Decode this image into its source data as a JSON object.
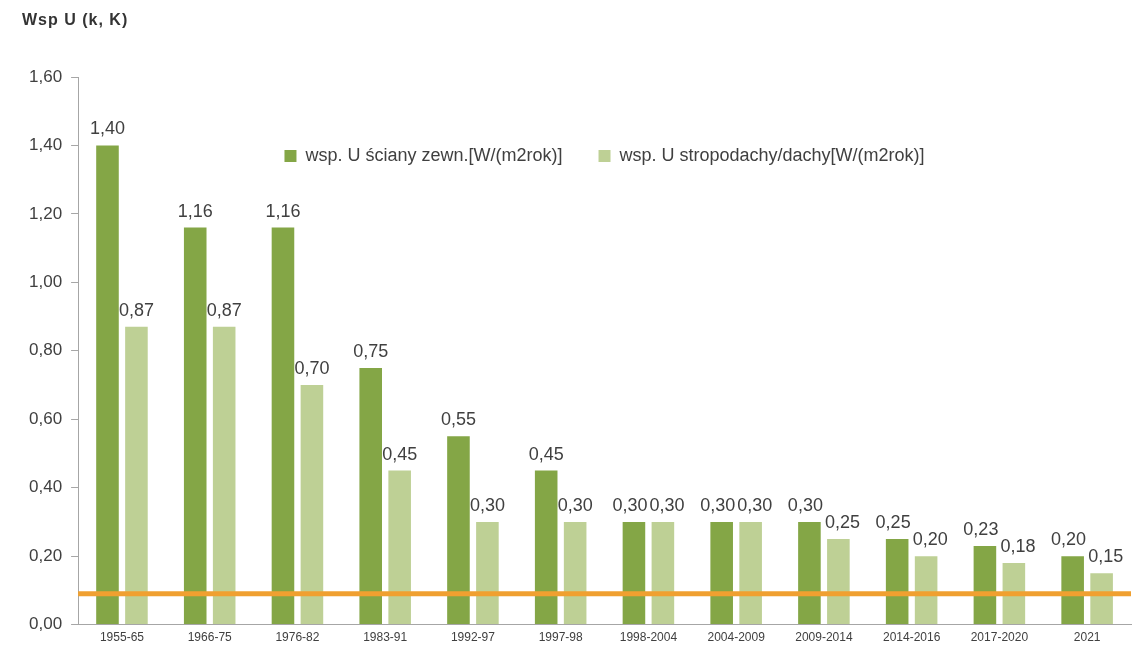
{
  "chart_data": {
    "type": "bar",
    "ylabel": "Wsp U (k, K)",
    "categories": [
      "1955-65",
      "1966-75",
      "1976-82",
      "1983-91",
      "1992-97",
      "1997-98",
      "1998-2004",
      "2004-2009",
      "2009-2014",
      "2014-2016",
      "2017-2020",
      "2021"
    ],
    "series": [
      {
        "name": "wsp. U ściany zewn.[W/(m2rok)]",
        "color": "#84a646",
        "values": [
          1.4,
          1.16,
          1.16,
          0.75,
          0.55,
          0.45,
          0.3,
          0.3,
          0.3,
          0.25,
          0.23,
          0.2
        ],
        "value_labels": [
          "1,40",
          "1,16",
          "1,16",
          "0,75",
          "0,55",
          "0,45",
          "0,30",
          "0,30",
          "0,30",
          "0,25",
          "0,23",
          "0,20"
        ]
      },
      {
        "name": "wsp. U stropodachy/dachy[W/(m2rok)]",
        "color": "#bed095",
        "values": [
          0.87,
          0.87,
          0.7,
          0.45,
          0.3,
          0.3,
          0.3,
          0.3,
          0.25,
          0.2,
          0.18,
          0.15
        ],
        "value_labels": [
          "0,87",
          "0,87",
          "0,70",
          "0,45",
          "0,30",
          "0,30",
          "0,30",
          "0,30",
          "0,25",
          "0,20",
          "0,18",
          "0,15"
        ]
      }
    ],
    "ylim": [
      0,
      1.6
    ],
    "yticks": [
      {
        "value": 0,
        "label": "0,00"
      },
      {
        "value": 0.2,
        "label": "0,20"
      },
      {
        "value": 0.4,
        "label": "0,40"
      },
      {
        "value": 0.6,
        "label": "0,60"
      },
      {
        "value": 0.8,
        "label": "0,80"
      },
      {
        "value": 1.0,
        "label": "1,00"
      },
      {
        "value": 1.2,
        "label": "1,20"
      },
      {
        "value": 1.4,
        "label": "1,40"
      },
      {
        "value": 1.6,
        "label": "1,60"
      }
    ],
    "legend": "top",
    "ref_lines": [
      {
        "axis": "y",
        "value": 0.09,
        "color": "#f0a030"
      }
    ]
  }
}
